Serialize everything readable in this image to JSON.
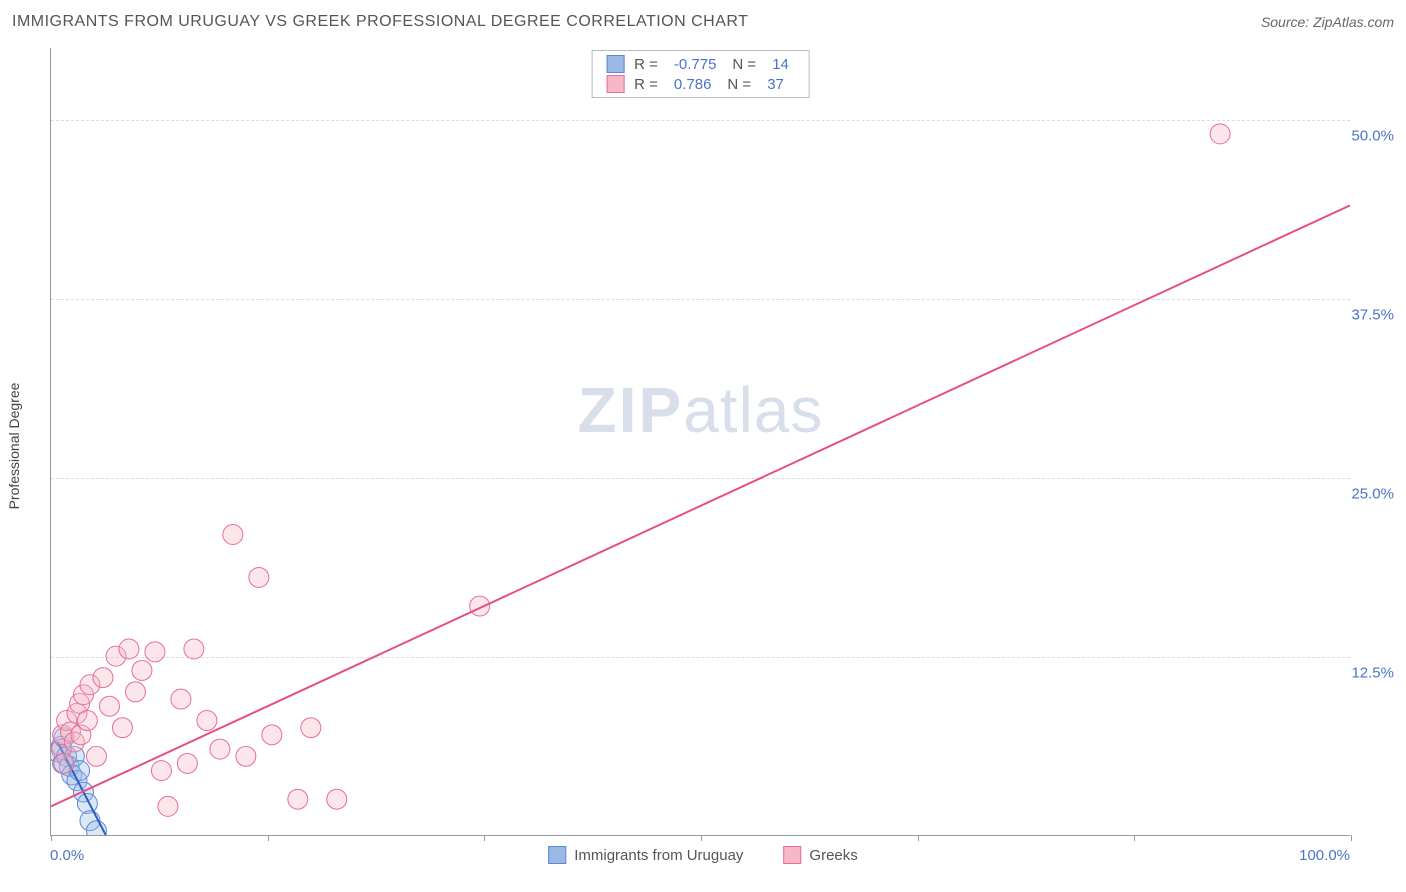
{
  "header": {
    "title": "IMMIGRANTS FROM URUGUAY VS GREEK PROFESSIONAL DEGREE CORRELATION CHART",
    "source": "Source: ZipAtlas.com"
  },
  "watermark": {
    "bold": "ZIP",
    "light": "atlas"
  },
  "chart": {
    "type": "scatter",
    "ylabel": "Professional Degree",
    "xlim": [
      0,
      100
    ],
    "ylim": [
      0,
      55
    ],
    "ytick_values": [
      12.5,
      25.0,
      37.5,
      50.0
    ],
    "ytick_labels": [
      "12.5%",
      "25.0%",
      "37.5%",
      "50.0%"
    ],
    "xtick_positions": [
      0,
      16.67,
      33.33,
      50,
      66.67,
      83.33,
      100
    ],
    "xtick_left_label": "0.0%",
    "xtick_right_label": "100.0%",
    "grid_color": "#dddddd",
    "axis_color": "#999999",
    "tick_label_color": "#4a74c9",
    "background_color": "#ffffff",
    "marker_radius": 10,
    "marker_opacity": 0.35,
    "line_width": 2,
    "series": [
      {
        "name": "Immigrants from Uruguay",
        "color_fill": "#9cb9e6",
        "color_stroke": "#5b87d6",
        "line_color": "#2b5fc0",
        "R": "-0.775",
        "N": "14",
        "trend": {
          "x1": 0.5,
          "y1": 6.5,
          "x2": 4.5,
          "y2": -0.5
        },
        "points": [
          [
            0.5,
            5.8
          ],
          [
            0.8,
            6.2
          ],
          [
            0.9,
            5.0
          ],
          [
            1.0,
            6.8
          ],
          [
            1.2,
            5.5
          ],
          [
            1.4,
            4.8
          ],
          [
            1.6,
            4.2
          ],
          [
            1.8,
            5.5
          ],
          [
            2.0,
            3.8
          ],
          [
            2.2,
            4.5
          ],
          [
            2.5,
            3.0
          ],
          [
            2.8,
            2.2
          ],
          [
            3.0,
            1.0
          ],
          [
            3.5,
            0.3
          ]
        ]
      },
      {
        "name": "Greeks",
        "color_fill": "#f4b8c8",
        "color_stroke": "#e86d94",
        "line_color": "#e84e84",
        "R": "0.786",
        "N": "37",
        "trend": {
          "x1": 0,
          "y1": 2.0,
          "x2": 100,
          "y2": 44.0
        },
        "points": [
          [
            0.8,
            6.0
          ],
          [
            0.9,
            7.0
          ],
          [
            1.0,
            5.0
          ],
          [
            1.2,
            8.0
          ],
          [
            1.5,
            7.2
          ],
          [
            1.8,
            6.5
          ],
          [
            2.0,
            8.5
          ],
          [
            2.2,
            9.2
          ],
          [
            2.3,
            7.0
          ],
          [
            2.5,
            9.8
          ],
          [
            2.8,
            8.0
          ],
          [
            3.0,
            10.5
          ],
          [
            3.5,
            5.5
          ],
          [
            4.0,
            11.0
          ],
          [
            4.5,
            9.0
          ],
          [
            5.0,
            12.5
          ],
          [
            5.5,
            7.5
          ],
          [
            6.0,
            13.0
          ],
          [
            6.5,
            10.0
          ],
          [
            7.0,
            11.5
          ],
          [
            8.0,
            12.8
          ],
          [
            8.5,
            4.5
          ],
          [
            9.0,
            2.0
          ],
          [
            10.0,
            9.5
          ],
          [
            10.5,
            5.0
          ],
          [
            11.0,
            13.0
          ],
          [
            12.0,
            8.0
          ],
          [
            13.0,
            6.0
          ],
          [
            14.0,
            21.0
          ],
          [
            15.0,
            5.5
          ],
          [
            16.0,
            18.0
          ],
          [
            17.0,
            7.0
          ],
          [
            19.0,
            2.5
          ],
          [
            20.0,
            7.5
          ],
          [
            22.0,
            2.5
          ],
          [
            33.0,
            16.0
          ],
          [
            90.0,
            49.0
          ]
        ]
      }
    ],
    "legend_top": {
      "border_color": "#bbbbbb",
      "label_R": "R =",
      "label_N": "N ="
    },
    "legend_bottom": {
      "items": [
        "Immigrants from Uruguay",
        "Greeks"
      ]
    }
  }
}
